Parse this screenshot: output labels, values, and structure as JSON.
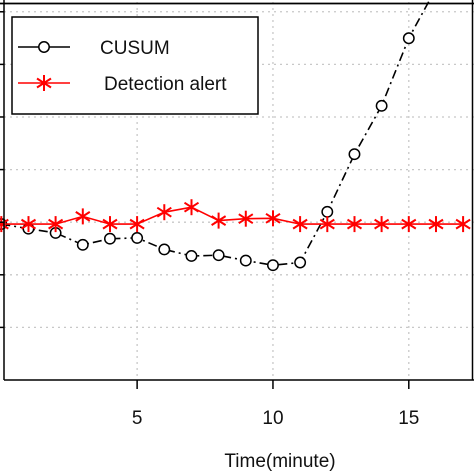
{
  "chart_data": {
    "type": "line",
    "title": "",
    "xlabel": "Time(minute)",
    "ylabel": "",
    "xlim": [
      0.1,
      17.4
    ],
    "ylim": [
      0,
      1
    ],
    "x_ticks": [
      5,
      10,
      15
    ],
    "x_tick_labels": [
      "5",
      "10",
      "15"
    ],
    "grid": true,
    "legend_position": "top-left",
    "series": [
      {
        "name": "CUSUM",
        "color": "#000000",
        "marker": "open-circle",
        "line_style": "dash-dot",
        "x": [
          0,
          1,
          2,
          3,
          4,
          5,
          6,
          7,
          8,
          9,
          10,
          11,
          12,
          13,
          14,
          15,
          16,
          17
        ],
        "y": [
          0.406,
          0.394,
          0.383,
          0.352,
          0.368,
          0.37,
          0.34,
          0.323,
          0.325,
          0.311,
          0.299,
          0.306,
          0.438,
          0.588,
          0.714,
          0.89,
          1.02,
          1.06
        ]
      },
      {
        "name": "Detection alert",
        "color": "#ff0000",
        "marker": "asterisk",
        "line_style": "solid",
        "x": [
          0,
          1,
          2,
          3,
          4,
          5,
          6,
          7,
          8,
          9,
          10,
          11,
          12,
          13,
          14,
          15,
          16,
          17
        ],
        "y": [
          0.406,
          0.406,
          0.406,
          0.426,
          0.406,
          0.406,
          0.437,
          0.45,
          0.415,
          0.42,
          0.421,
          0.406,
          0.406,
          0.406,
          0.406,
          0.406,
          0.406,
          0.406
        ]
      }
    ]
  }
}
